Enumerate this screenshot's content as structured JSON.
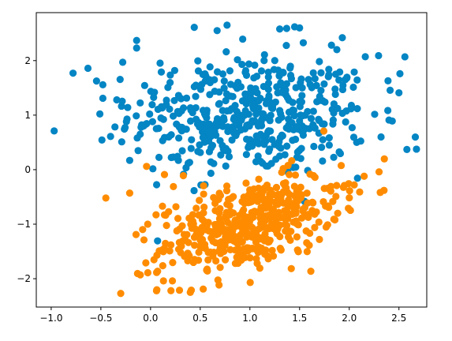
{
  "chart_data": {
    "type": "scatter",
    "title": "",
    "xlabel": "",
    "ylabel": "",
    "xlim": [
      -1.15,
      2.78
    ],
    "ylim": [
      -2.52,
      2.88
    ],
    "xticks": [
      -1.0,
      -0.5,
      0.0,
      0.5,
      1.0,
      1.5,
      2.0,
      2.5
    ],
    "xtick_labels": [
      "−1.0",
      "−0.5",
      "0.0",
      "0.5",
      "1.0",
      "1.5",
      "2.0",
      "2.5"
    ],
    "yticks": [
      -2,
      -1,
      0,
      1,
      2
    ],
    "ytick_labels": [
      "−2",
      "−1",
      "0",
      "1",
      "2"
    ],
    "grid": false,
    "legend": "none",
    "series": [
      {
        "color": "#0485c4",
        "points_count": 500,
        "distribution": {
          "mean_x": 1.0,
          "mean_y": 1.0,
          "std_x": 0.6,
          "std_y": 0.55,
          "correlation": 0.0
        },
        "points": [
          [
            -0.97,
            0.71
          ],
          [
            -0.78,
            1.77
          ],
          [
            -0.63,
            1.86
          ],
          [
            -0.48,
            1.31
          ],
          [
            -0.34,
            1.28
          ],
          [
            -0.28,
            1.97
          ],
          [
            -0.14,
            2.37
          ],
          [
            -0.14,
            2.23
          ],
          [
            0.44,
            2.61
          ],
          [
            0.67,
            2.55
          ],
          [
            0.77,
            2.65
          ],
          [
            1.3,
            2.58
          ],
          [
            1.37,
            2.59
          ],
          [
            1.45,
            2.62
          ],
          [
            1.5,
            2.6
          ],
          [
            1.93,
            2.42
          ],
          [
            2.56,
            2.07
          ],
          [
            2.58,
            0.37
          ],
          [
            -0.21,
            0.17
          ],
          [
            -0.29,
            0.51
          ],
          [
            2.32,
            0.6
          ],
          [
            2.39,
            1.63
          ],
          [
            2.5,
            1.41
          ],
          [
            2.51,
            1.76
          ],
          [
            2.4,
            0.91
          ],
          [
            2.05,
            1.79
          ],
          [
            -0.23,
            1.14
          ],
          [
            0.02,
            0.88
          ],
          [
            0.28,
            0.17
          ]
        ]
      },
      {
        "color": "#ff8c00",
        "points_count": 500,
        "distribution": {
          "mean_x": 1.0,
          "mean_y": -1.0,
          "std_x": 0.45,
          "std_y": 0.45,
          "correlation": 0.5
        },
        "points": [
          [
            -0.45,
            -0.52
          ],
          [
            -0.3,
            -2.27
          ],
          [
            -0.21,
            -0.43
          ],
          [
            -0.04,
            0.06
          ],
          [
            0.14,
            -0.09
          ],
          [
            2.3,
            -0.04
          ],
          [
            2.15,
            -0.12
          ],
          [
            2.05,
            -0.28
          ],
          [
            1.95,
            -0.29
          ],
          [
            1.7,
            -1.28
          ],
          [
            0.41,
            -2.21
          ],
          [
            0.4,
            -2.25
          ],
          [
            0.53,
            -2.19
          ],
          [
            0.13,
            -2.04
          ],
          [
            0.22,
            -2.04
          ],
          [
            0.12,
            -1.47
          ],
          [
            0.14,
            -0.83
          ],
          [
            0.12,
            -0.67
          ],
          [
            0.23,
            -0.31
          ],
          [
            0.33,
            -0.11
          ]
        ]
      }
    ]
  }
}
